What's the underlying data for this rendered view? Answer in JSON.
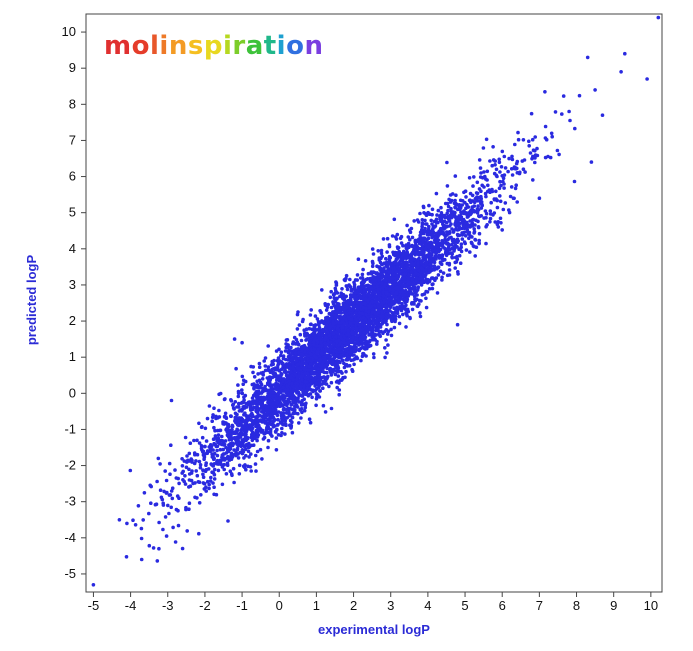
{
  "chart_data": {
    "type": "scatter",
    "title": "",
    "xlabel": "experimental logP",
    "ylabel": "predicted logP",
    "xlim": [
      -5.2,
      10.3
    ],
    "ylim": [
      -5.5,
      10.5
    ],
    "x_ticks": [
      -5,
      -4,
      -3,
      -2,
      -1,
      0,
      1,
      2,
      3,
      4,
      5,
      6,
      7,
      8,
      9,
      10
    ],
    "y_ticks": [
      -5,
      -4,
      -3,
      -2,
      -1,
      0,
      1,
      2,
      3,
      4,
      5,
      6,
      7,
      8,
      9,
      10
    ],
    "grid": false,
    "legend": "none",
    "marker_color": "#2a2ae0",
    "trend": {
      "slope": 0.95,
      "intercept": 0.05,
      "spread": 0.55
    },
    "points": [
      {
        "x": -5.0,
        "y": -5.3
      },
      {
        "x": -4.3,
        "y": -3.5
      },
      {
        "x": -4.1,
        "y": -3.6
      },
      {
        "x": -3.7,
        "y": -4.6
      },
      {
        "x": -2.6,
        "y": -4.3
      },
      {
        "x": -2.9,
        "y": -0.2
      },
      {
        "x": -1.2,
        "y": 1.5
      },
      {
        "x": -1.0,
        "y": 1.4
      },
      {
        "x": 4.8,
        "y": 1.9
      },
      {
        "x": 8.3,
        "y": 9.3
      },
      {
        "x": 9.3,
        "y": 9.4
      },
      {
        "x": 9.2,
        "y": 8.9
      },
      {
        "x": 9.9,
        "y": 8.7
      },
      {
        "x": 10.2,
        "y": 10.4
      },
      {
        "x": 8.5,
        "y": 8.4
      },
      {
        "x": 8.7,
        "y": 7.7
      },
      {
        "x": 8.4,
        "y": 6.4
      },
      {
        "x": 7.8,
        "y": 7.8
      },
      {
        "x": 7.0,
        "y": 5.4
      },
      {
        "x": 6.3,
        "y": 5.4
      }
    ]
  },
  "brand": {
    "name": "molinspiration",
    "letter_colors": [
      "#e03030",
      "#e53c2a",
      "#e8572a",
      "#ee7a28",
      "#f39b25",
      "#f5bf20",
      "#e8d820",
      "#b6d820",
      "#7ccd2a",
      "#3ec23a",
      "#20b88a",
      "#1ea0d0",
      "#3070e0",
      "#7a3ee0"
    ]
  }
}
